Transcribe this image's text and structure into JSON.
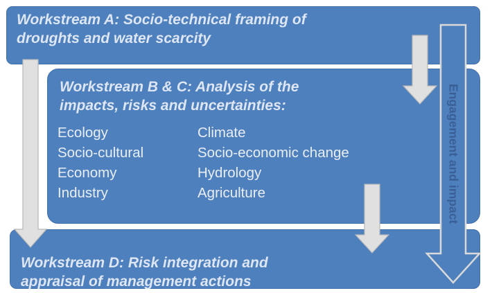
{
  "workstream_a": {
    "title_line1": "Workstream A: Socio-technical framing of",
    "title_line2": "droughts and water scarcity"
  },
  "workstream_bc": {
    "title_line1": "Workstream B & C: Analysis of the",
    "title_line2": "impacts, risks and uncertainties:",
    "items_left": [
      "Ecology",
      "Socio-cultural",
      "Economy",
      "Industry"
    ],
    "items_right": [
      "Climate",
      "Socio-economic change",
      "Hydrology",
      "Agriculture"
    ]
  },
  "workstream_d": {
    "title_line1": "Workstream D: Risk integration and",
    "title_line2": "appraisal of management actions"
  },
  "side_arrow_label": "Engagement and impact",
  "colors": {
    "box_fill": "#4e80bd",
    "arrow_fill": "#e0e0e0",
    "text": "#e9eef6"
  }
}
